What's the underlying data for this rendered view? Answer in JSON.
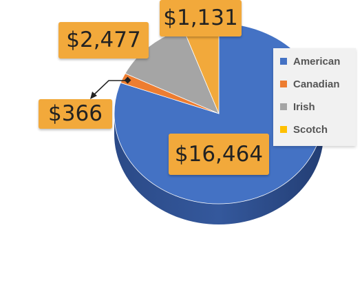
{
  "chart_data": {
    "type": "pie",
    "categories": [
      "American",
      "Canadian",
      "Irish",
      "Scotch"
    ],
    "values": [
      16464,
      366,
      2477,
      1131
    ],
    "value_labels": [
      "$16,464",
      "$366",
      "$2,477",
      "$1,131"
    ],
    "colors": [
      "#4472c4",
      "#ed7d31",
      "#a5a5a5",
      "#f2a93b"
    ],
    "legend_placement": "right",
    "style": "3d"
  },
  "legend": {
    "items": [
      {
        "label": "American",
        "color": "#4472c4"
      },
      {
        "label": "Canadian",
        "color": "#ed7d31"
      },
      {
        "label": "Irish",
        "color": "#a5a5a5"
      },
      {
        "label": "Scotch",
        "color": "#ffc000"
      }
    ]
  },
  "label_color": "#f2a93b"
}
